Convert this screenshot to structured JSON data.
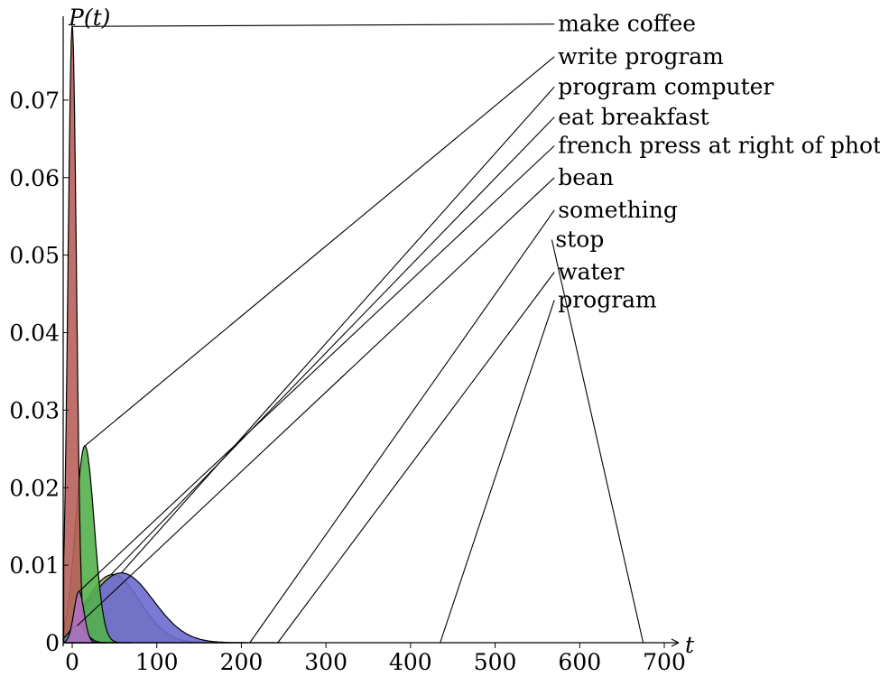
{
  "chart_data": {
    "type": "area",
    "title": "",
    "xlabel": "t",
    "ylabel": "P(t)",
    "xlim": [
      -10,
      715
    ],
    "ylim": [
      0,
      0.08
    ],
    "xticks": [
      0,
      100,
      200,
      300,
      400,
      500,
      600,
      700
    ],
    "yticks": [
      0,
      0.01,
      0.02,
      0.03,
      0.04,
      0.05,
      0.06,
      0.07
    ],
    "xtick_labels": [
      "0",
      "100",
      "200",
      "300",
      "400",
      "500",
      "600",
      "700"
    ],
    "ytick_labels": [
      "0",
      "0.01",
      "0.02",
      "0.03",
      "0.04",
      "0.05",
      "0.06",
      "0.07"
    ],
    "grid": false,
    "series": [
      {
        "name": "make coffee",
        "color": "#b8605a",
        "peak_t": 0,
        "peak_p": 0.0795,
        "sigma": 5,
        "anchor_t": 0,
        "anchor_p": 0.0795,
        "label_anchor": [
          570,
          0.0798
        ]
      },
      {
        "name": "write program",
        "color": "#54b04c",
        "peak_t": 15,
        "peak_p": 0.0254,
        "sigma": 11,
        "anchor_t": 15,
        "anchor_p": 0.0254,
        "label_anchor": [
          570,
          0.0756
        ]
      },
      {
        "name": "program computer",
        "color": "#6c6cd0",
        "peak_t": 58,
        "peak_p": 0.009,
        "sigma": 38,
        "anchor_t": 58,
        "anchor_p": 0.009,
        "label_anchor": [
          570,
          0.0717
        ]
      },
      {
        "name": "eat breakfast",
        "color": "#a9a85c",
        "peak_t": 48,
        "peak_p": 0.0088,
        "sigma": 32,
        "anchor_t": 46,
        "anchor_p": 0.0088,
        "label_anchor": [
          570,
          0.0678
        ]
      },
      {
        "name": "french press at right of photo",
        "color": "#b070c0",
        "peak_t": 8,
        "peak_p": 0.0066,
        "sigma": 6,
        "anchor_t": 8,
        "anchor_p": 0.0066,
        "label_anchor": [
          570,
          0.0641
        ]
      },
      {
        "name": "bean",
        "color": "#4a8f8f",
        "peak_t": 6,
        "peak_p": 0.0022,
        "sigma": 10,
        "anchor_t": 6,
        "anchor_p": 0.0022,
        "label_anchor": [
          570,
          0.06
        ]
      },
      {
        "name": "something",
        "color": "#999999",
        "peak_t": 210,
        "peak_p": 0.0,
        "sigma": 10,
        "anchor_t": 210,
        "anchor_p": 0.0,
        "label_anchor": [
          570,
          0.0558
        ]
      },
      {
        "name": "stop",
        "color": "#999999",
        "peak_t": 675,
        "peak_p": 0.0,
        "sigma": 10,
        "anchor_t": 675,
        "anchor_p": 0.0,
        "label_anchor": [
          567,
          0.052
        ]
      },
      {
        "name": "water",
        "color": "#999999",
        "peak_t": 243,
        "peak_p": 0.0,
        "sigma": 10,
        "anchor_t": 243,
        "anchor_p": 0.0,
        "label_anchor": [
          570,
          0.0478
        ]
      },
      {
        "name": "program",
        "color": "#999999",
        "peak_t": 435,
        "peak_p": 0.0,
        "sigma": 10,
        "anchor_t": 435,
        "anchor_p": 0.0,
        "label_anchor": [
          570,
          0.0442
        ]
      }
    ]
  }
}
